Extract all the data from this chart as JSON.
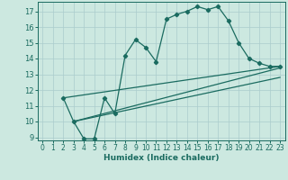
{
  "xlabel": "Humidex (Indice chaleur)",
  "background_color": "#cce8e0",
  "grid_color": "#aacccc",
  "line_color": "#1a6b60",
  "xlim": [
    -0.5,
    23.5
  ],
  "ylim": [
    8.8,
    17.6
  ],
  "yticks": [
    9,
    10,
    11,
    12,
    13,
    14,
    15,
    16,
    17
  ],
  "xticks": [
    0,
    1,
    2,
    3,
    4,
    5,
    6,
    7,
    8,
    9,
    10,
    11,
    12,
    13,
    14,
    15,
    16,
    17,
    18,
    19,
    20,
    21,
    22,
    23
  ],
  "line1_x": [
    2,
    3,
    4,
    5,
    6,
    7,
    8,
    9,
    10,
    11,
    12,
    13,
    14,
    15,
    16,
    17,
    18,
    19,
    20,
    21,
    22,
    23
  ],
  "line1_y": [
    11.5,
    10.0,
    8.9,
    8.9,
    11.5,
    10.5,
    14.2,
    15.2,
    14.7,
    13.8,
    16.5,
    16.8,
    17.0,
    17.3,
    17.1,
    17.3,
    16.4,
    15.0,
    14.0,
    13.7,
    13.5,
    13.5
  ],
  "line2_x": [
    2,
    23
  ],
  "line2_y": [
    11.5,
    13.5
  ],
  "line3_x": [
    3,
    23
  ],
  "line3_y": [
    10.0,
    13.4
  ],
  "line4_x": [
    3,
    23
  ],
  "line4_y": [
    10.0,
    12.8
  ]
}
